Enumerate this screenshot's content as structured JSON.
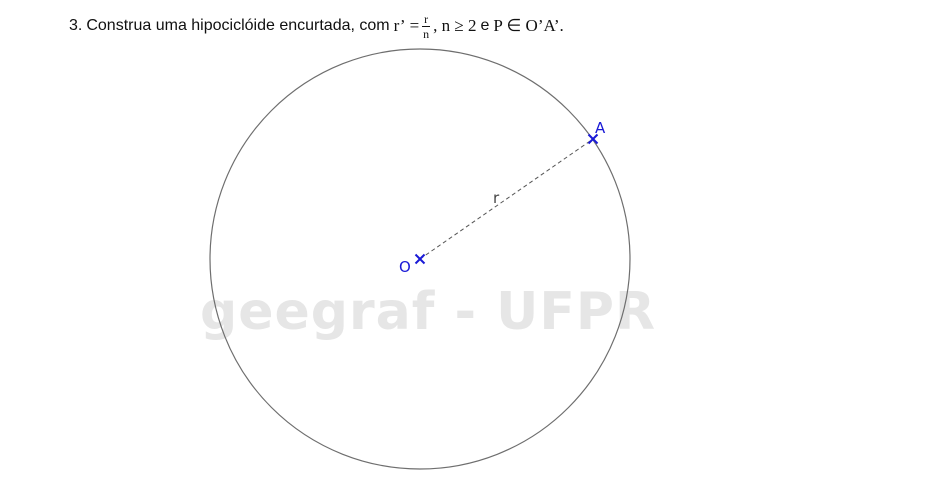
{
  "problem": {
    "number": "3.",
    "text": "Construa uma hipociclóide encurtada, com",
    "r_prime": "r’",
    "equals": "=",
    "frac_num": "r",
    "frac_den": "n",
    "condition_n": ", n ≥ 2",
    "conj": "e",
    "condition_p": "P ∈ O’A’."
  },
  "diagram": {
    "watermark": "geegraf - UFPR",
    "center_label": "O",
    "point_label": "A",
    "radius_label": "r",
    "colors": {
      "circle": "#6e6e6e",
      "points": "#1a1ad6",
      "dashed": "#555555",
      "watermark": "#e6e6e6"
    }
  }
}
